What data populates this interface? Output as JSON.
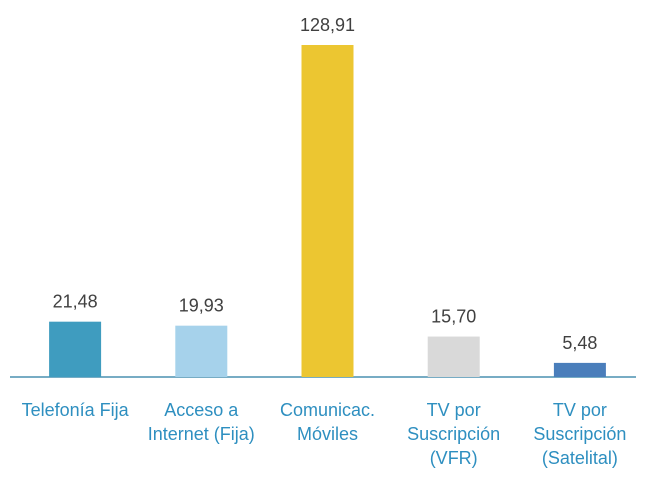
{
  "chart_data": {
    "type": "bar",
    "categories": [
      "Telefonía Fija",
      "Acceso a Internet (Fija)",
      "Comunicac. Móviles",
      "TV por Suscripción (VFR)",
      "TV por Suscripción (Satelital)"
    ],
    "values": [
      21.48,
      19.93,
      128.91,
      15.7,
      5.48
    ],
    "value_labels": [
      "21,48",
      "19,93",
      "128,91",
      "15,70",
      "5,48"
    ],
    "colors": [
      "#3f9cbf",
      "#a6d2eb",
      "#ecc631",
      "#d9d9d9",
      "#4a7ebb"
    ]
  }
}
